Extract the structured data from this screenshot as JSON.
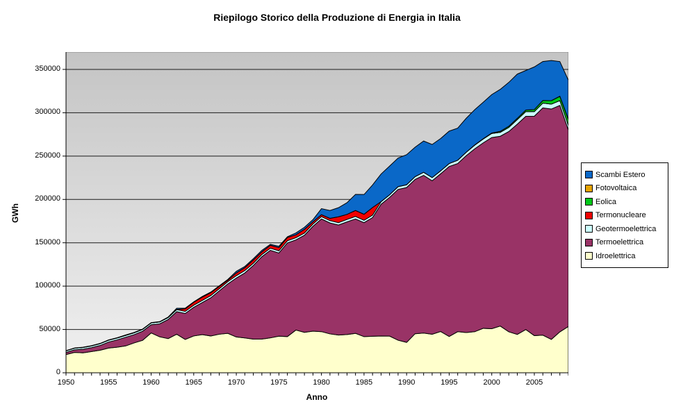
{
  "title": "Riepilogo Storico della Produzione di Energia in Italia",
  "chart_data": {
    "type": "area",
    "stacked": true,
    "title": "Riepilogo Storico della Produzione di Energia in Italia",
    "xlabel": "Anno",
    "ylabel": "GWh",
    "ylim": [
      0,
      370000
    ],
    "yticks": [
      0,
      50000,
      100000,
      150000,
      200000,
      250000,
      300000,
      350000
    ],
    "xtick_labels": [
      1950,
      1955,
      1960,
      1965,
      1970,
      1975,
      1980,
      1985,
      1990,
      1995,
      2000,
      2005
    ],
    "grid": "horizontal",
    "legend_position": "right",
    "plot_bg_gradient": [
      "#C4C4C4",
      "#F1F1F1"
    ],
    "plot_border_color": "#808080",
    "gridline_color": "#1a1a1a",
    "x": [
      1950,
      1951,
      1952,
      1953,
      1954,
      1955,
      1956,
      1957,
      1958,
      1959,
      1960,
      1961,
      1962,
      1963,
      1964,
      1965,
      1966,
      1967,
      1968,
      1969,
      1970,
      1971,
      1972,
      1973,
      1974,
      1975,
      1976,
      1977,
      1978,
      1979,
      1980,
      1981,
      1982,
      1983,
      1984,
      1985,
      1986,
      1987,
      1988,
      1989,
      1990,
      1991,
      1992,
      1993,
      1994,
      1995,
      1996,
      1997,
      1998,
      1999,
      2000,
      2001,
      2002,
      2003,
      2004,
      2005,
      2006,
      2007,
      2008,
      2009
    ],
    "series": [
      {
        "name": "Idroelettrica",
        "color": "#FFFFCC",
        "values": [
          21000,
          23500,
          23000,
          24500,
          26000,
          28500,
          29500,
          31000,
          34500,
          37500,
          46000,
          41500,
          39500,
          44500,
          38500,
          42500,
          44000,
          42500,
          44500,
          45500,
          41300,
          40200,
          38800,
          38900,
          40300,
          42200,
          41800,
          49300,
          46700,
          48000,
          47500,
          44900,
          43500,
          44100,
          45500,
          41700,
          42100,
          42400,
          42300,
          37600,
          35100,
          45100,
          45800,
          44500,
          47600,
          41900,
          47400,
          46500,
          47400,
          51300,
          50900,
          53900,
          47300,
          44300,
          49900,
          42900,
          43400,
          38500,
          47200,
          53400
        ]
      },
      {
        "name": "Termoelettrica",
        "color": "#993366",
        "values": [
          2400,
          3000,
          4200,
          4500,
          5500,
          7000,
          8500,
          10000,
          9500,
          10500,
          9500,
          15000,
          22000,
          26000,
          30000,
          33000,
          37000,
          44000,
          50000,
          57000,
          68000,
          75000,
          85000,
          95000,
          101000,
          96000,
          108000,
          104000,
          112000,
          121000,
          130000,
          128000,
          127000,
          130000,
          132000,
          131500,
          137000,
          152000,
          160000,
          174000,
          178600,
          178000,
          182000,
          177000,
          182000,
          196100,
          194000,
          204000,
          211000,
          214000,
          220500,
          219000,
          231000,
          242500,
          246000,
          253100,
          262200,
          265800,
          261300,
          226600
        ]
      },
      {
        "name": "Geotermoelettrica",
        "color": "#CCFFFF",
        "values": [
          1900,
          1950,
          2000,
          2050,
          2100,
          2100,
          2100,
          2150,
          2150,
          2100,
          2100,
          2150,
          2250,
          2350,
          2400,
          2400,
          2450,
          2500,
          2550,
          2600,
          2700,
          2700,
          2550,
          2500,
          2450,
          2500,
          2550,
          2500,
          2450,
          2550,
          2700,
          2650,
          2700,
          2850,
          2900,
          2700,
          2800,
          2900,
          3050,
          3150,
          3200,
          3200,
          3500,
          3700,
          3400,
          3400,
          3800,
          3900,
          4200,
          4400,
          4700,
          4500,
          4700,
          5300,
          5400,
          5300,
          5500,
          5600,
          5520,
          5350
        ]
      },
      {
        "name": "Termonucleare",
        "color": "#F00000",
        "values": [
          0,
          0,
          0,
          0,
          0,
          0,
          0,
          0,
          0,
          0,
          0,
          0,
          0,
          300,
          2900,
          3500,
          3900,
          3400,
          2700,
          1600,
          3200,
          3400,
          3800,
          3100,
          3400,
          3800,
          3800,
          3400,
          4400,
          2600,
          2200,
          2700,
          6800,
          5800,
          6900,
          7000,
          8800,
          200,
          0,
          0,
          0,
          0,
          0,
          0,
          0,
          0,
          0,
          0,
          0,
          0,
          0,
          0,
          0,
          0,
          0,
          0,
          0,
          0,
          0,
          0
        ]
      },
      {
        "name": "Eolica",
        "color": "#00C818",
        "values": [
          0,
          0,
          0,
          0,
          0,
          0,
          0,
          0,
          0,
          0,
          0,
          0,
          0,
          0,
          0,
          0,
          0,
          0,
          0,
          0,
          0,
          0,
          0,
          0,
          0,
          0,
          0,
          0,
          0,
          0,
          0,
          0,
          0,
          0,
          0,
          0,
          0,
          0,
          0,
          0,
          0,
          0,
          0,
          0,
          10,
          10,
          30,
          120,
          230,
          400,
          560,
          1180,
          1400,
          1460,
          1850,
          2340,
          2970,
          4030,
          4860,
          6540
        ]
      },
      {
        "name": "Fotovoltaica",
        "color": "#E5A300",
        "values": [
          0,
          0,
          0,
          0,
          0,
          0,
          0,
          0,
          0,
          0,
          0,
          0,
          0,
          0,
          0,
          0,
          0,
          0,
          0,
          0,
          0,
          0,
          0,
          0,
          0,
          0,
          0,
          0,
          0,
          0,
          0,
          0,
          0,
          0,
          0,
          0,
          0,
          0,
          0,
          0,
          0,
          0,
          0,
          0,
          0,
          0,
          0,
          0,
          0,
          0,
          0,
          0,
          20,
          25,
          30,
          30,
          35,
          40,
          190,
          680
        ]
      },
      {
        "name": "Scambi Estero",
        "color": "#0A68C8",
        "values": [
          200,
          200,
          300,
          300,
          300,
          400,
          400,
          500,
          400,
          400,
          300,
          400,
          600,
          1300,
          800,
          500,
          700,
          700,
          600,
          1000,
          1900,
          1400,
          1500,
          1700,
          1100,
          1500,
          800,
          2100,
          2300,
          2500,
          7000,
          9000,
          10500,
          13500,
          18500,
          22800,
          26000,
          31800,
          33100,
          33000,
          34700,
          34000,
          36100,
          38200,
          37300,
          37400,
          37000,
          39100,
          40700,
          42000,
          44300,
          48400,
          50600,
          51000,
          45600,
          49200,
          45000,
          46300,
          40000,
          45000
        ]
      }
    ]
  }
}
